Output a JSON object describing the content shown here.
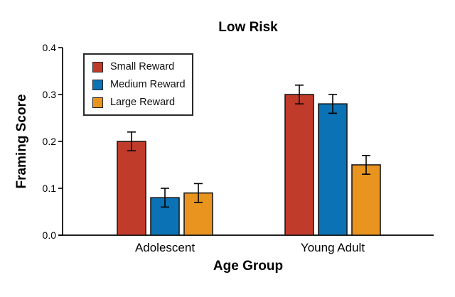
{
  "chart_data": {
    "type": "bar",
    "title": "Low Risk",
    "xlabel": "Age Group",
    "ylabel": "Framing Score",
    "categories": [
      "Adolescent",
      "Young Adult"
    ],
    "series": [
      {
        "name": "Small Reward",
        "color": "#C13B2B",
        "values": [
          0.2,
          0.3
        ],
        "errors": [
          0.02,
          0.02
        ]
      },
      {
        "name": "Medium Reward",
        "color": "#0B72B5",
        "values": [
          0.08,
          0.28
        ],
        "errors": [
          0.02,
          0.02
        ]
      },
      {
        "name": "Large Reward",
        "color": "#E8941F",
        "values": [
          0.09,
          0.15
        ],
        "errors": [
          0.02,
          0.02
        ]
      }
    ],
    "ylim": [
      0,
      0.4
    ],
    "ytick_labels": [
      "0.0",
      "0.1",
      "0.2",
      "0.3",
      "0.4"
    ],
    "legend_position": "upper-left",
    "grid": false,
    "error_bars": true,
    "bar_edge_color": "#1A1A1A",
    "axis_color": "#000000",
    "error_bar_color": "#000000",
    "background": "#FFFFFF"
  }
}
